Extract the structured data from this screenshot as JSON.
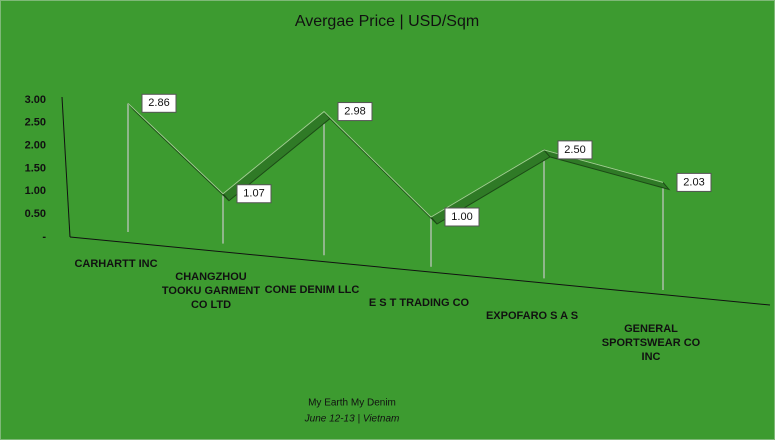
{
  "chart_data": {
    "type": "line3d",
    "title": "Avergae Price | USD/Sqm",
    "categories": [
      "CARHARTT INC",
      "CHANGZHOU TOOKU GARMENT CO LTD",
      "CONE DENIM LLC",
      "E S T TRADING CO",
      "EXPOFARO S A S",
      "GENERAL SPORTSWEAR CO INC"
    ],
    "values": [
      2.86,
      1.07,
      2.98,
      1.0,
      2.5,
      2.03
    ],
    "value_labels": [
      "2.86",
      "1.07",
      "2.98",
      "1.00",
      "2.50",
      "2.03"
    ],
    "color": "#2f7a26",
    "ylim": [
      0,
      3
    ],
    "yticks": [
      {
        "value": 0,
        "label": "-"
      },
      {
        "value": 0.5,
        "label": "0.50"
      },
      {
        "value": 1,
        "label": "1.00"
      },
      {
        "value": 1.5,
        "label": "1.50"
      },
      {
        "value": 2,
        "label": "2.00"
      },
      {
        "value": 2.5,
        "label": "2.50"
      },
      {
        "value": 3,
        "label": "3.00"
      }
    ],
    "footer": [
      "My Earth My Denim",
      "June 12-13 | Vietnam"
    ]
  }
}
